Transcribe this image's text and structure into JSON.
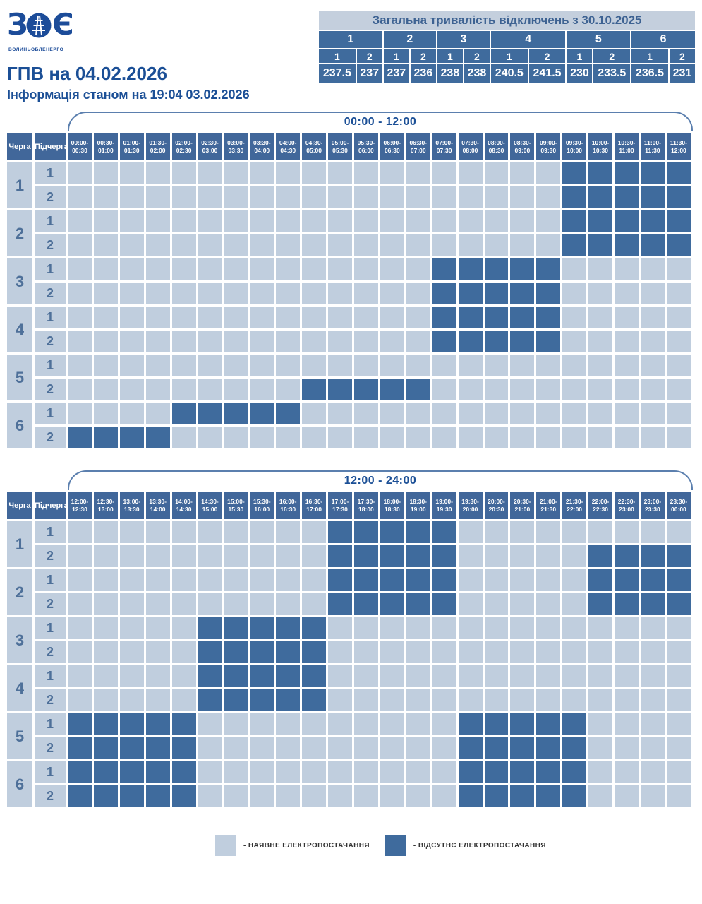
{
  "logo": {
    "left_letter": "З",
    "right_letter": "Є",
    "subtext": "ВОЛИНЬОБЛЕНЕРГО"
  },
  "header": {
    "title": "ГПВ на 04.02.2026",
    "subtitle": "Інформація станом на 19:04 03.02.2026"
  },
  "grid_headers": {
    "queue": "Черга",
    "subqueue": "Підчерга"
  },
  "legend": {
    "available": "- НАЯВНЕ ЕЛЕКТРОПОСТАЧАННЯ",
    "absent": "- ВІДСУТНЄ ЕЛЕКТРОПОСТАЧАННЯ"
  },
  "colors": {
    "power_on": "#c0cede",
    "power_off": "#3f6b9d",
    "header_cell": "#41679a",
    "accent_text": "#1b4f96",
    "summary_title_bg": "#c4cfdd",
    "summary_title_text": "#3d6292",
    "queue_text": "#4e7099",
    "bracket_line": "#5b7fae",
    "logo_blue": "#1c4c99"
  },
  "chart_data": [
    {
      "type": "table",
      "title": "Загальна тривалість відключень з 30.10.2025",
      "queues": [
        "1",
        "2",
        "3",
        "4",
        "5",
        "6"
      ],
      "subqueues": [
        "1",
        "2",
        "1",
        "2",
        "1",
        "2",
        "1",
        "2",
        "1",
        "2",
        "1",
        "2"
      ],
      "values": [
        "237.5",
        "237",
        "237",
        "236",
        "238",
        "238",
        "240.5",
        "241.5",
        "230",
        "233.5",
        "236.5",
        "231"
      ]
    },
    {
      "type": "heatmap",
      "title": "00:00 - 12:00",
      "x_labels": [
        "00:00-00:30",
        "00:30-01:00",
        "01:00-01:30",
        "01:30-02:00",
        "02:00-02:30",
        "02:30-03:00",
        "03:00-03:30",
        "03:30-04:00",
        "04:00-04:30",
        "04:30-05:00",
        "05:00-05:30",
        "05:30-06:00",
        "06:00-06:30",
        "06:30-07:00",
        "07:00-07:30",
        "07:30-08:00",
        "08:00-08:30",
        "08:30-09:00",
        "09:00-09:30",
        "09:30-10:00",
        "10:00-10:30",
        "10:30-11:00",
        "11:00-11:30",
        "11:30-12:00"
      ],
      "rows": [
        {
          "queue": "1",
          "sub": "1",
          "off": [
            19,
            20,
            21,
            22,
            23
          ]
        },
        {
          "queue": "1",
          "sub": "2",
          "off": [
            19,
            20,
            21,
            22,
            23
          ]
        },
        {
          "queue": "2",
          "sub": "1",
          "off": [
            19,
            20,
            21,
            22,
            23
          ]
        },
        {
          "queue": "2",
          "sub": "2",
          "off": [
            19,
            20,
            21,
            22,
            23
          ]
        },
        {
          "queue": "3",
          "sub": "1",
          "off": [
            14,
            15,
            16,
            17,
            18
          ]
        },
        {
          "queue": "3",
          "sub": "2",
          "off": [
            14,
            15,
            16,
            17,
            18
          ]
        },
        {
          "queue": "4",
          "sub": "1",
          "off": [
            14,
            15,
            16,
            17,
            18
          ]
        },
        {
          "queue": "4",
          "sub": "2",
          "off": [
            14,
            15,
            16,
            17,
            18
          ]
        },
        {
          "queue": "5",
          "sub": "1",
          "off": []
        },
        {
          "queue": "5",
          "sub": "2",
          "off": [
            9,
            10,
            11,
            12,
            13
          ]
        },
        {
          "queue": "6",
          "sub": "1",
          "off": [
            4,
            5,
            6,
            7,
            8
          ]
        },
        {
          "queue": "6",
          "sub": "2",
          "off": [
            0,
            1,
            2,
            3
          ]
        }
      ]
    },
    {
      "type": "heatmap",
      "title": "12:00 - 24:00",
      "x_labels": [
        "12:00-12:30",
        "12:30-13:00",
        "13:00-13:30",
        "13:30-14:00",
        "14:00-14:30",
        "14:30-15:00",
        "15:00-15:30",
        "15:30-16:00",
        "16:00-16:30",
        "16:30-17:00",
        "17:00-17:30",
        "17:30-18:00",
        "18:00-18:30",
        "18:30-19:00",
        "19:00-19:30",
        "19:30-20:00",
        "20:00-20:30",
        "20:30-21:00",
        "21:00-21:30",
        "21:30-22:00",
        "22:00-22:30",
        "22:30-23:00",
        "23:00-23:30",
        "23:30-00:00"
      ],
      "rows": [
        {
          "queue": "1",
          "sub": "1",
          "off": [
            10,
            11,
            12,
            13,
            14
          ]
        },
        {
          "queue": "1",
          "sub": "2",
          "off": [
            10,
            11,
            12,
            13,
            14,
            20,
            21,
            22,
            23
          ]
        },
        {
          "queue": "2",
          "sub": "1",
          "off": [
            10,
            11,
            12,
            13,
            14,
            20,
            21,
            22,
            23
          ]
        },
        {
          "queue": "2",
          "sub": "2",
          "off": [
            10,
            11,
            12,
            13,
            14,
            20,
            21,
            22,
            23
          ]
        },
        {
          "queue": "3",
          "sub": "1",
          "off": [
            5,
            6,
            7,
            8,
            9
          ]
        },
        {
          "queue": "3",
          "sub": "2",
          "off": [
            5,
            6,
            7,
            8,
            9
          ]
        },
        {
          "queue": "4",
          "sub": "1",
          "off": [
            5,
            6,
            7,
            8,
            9
          ]
        },
        {
          "queue": "4",
          "sub": "2",
          "off": [
            5,
            6,
            7,
            8,
            9
          ]
        },
        {
          "queue": "5",
          "sub": "1",
          "off": [
            0,
            1,
            2,
            3,
            4,
            15,
            16,
            17,
            18,
            19
          ]
        },
        {
          "queue": "5",
          "sub": "2",
          "off": [
            0,
            1,
            2,
            3,
            4,
            15,
            16,
            17,
            18,
            19
          ]
        },
        {
          "queue": "6",
          "sub": "1",
          "off": [
            0,
            1,
            2,
            3,
            4,
            15,
            16,
            17,
            18,
            19
          ]
        },
        {
          "queue": "6",
          "sub": "2",
          "off": [
            0,
            1,
            2,
            3,
            4,
            15,
            16,
            17,
            18,
            19
          ]
        }
      ]
    }
  ]
}
